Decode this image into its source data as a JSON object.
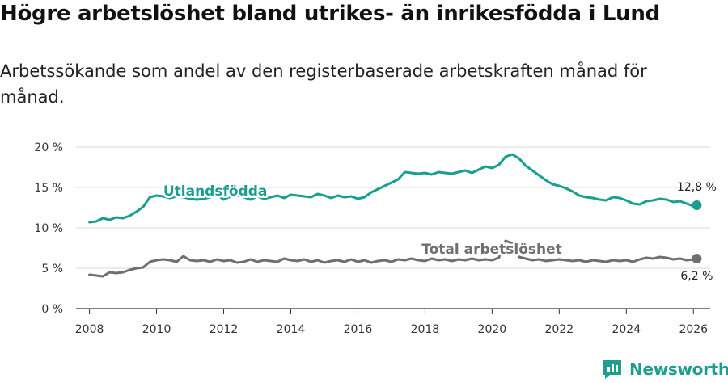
{
  "header": {
    "title": "Högre arbetslöshet bland utrikes- än inrikesfödda i Lund",
    "subtitle": "Arbetssökande som andel av den registerbaserade arbetskraften månad för månad."
  },
  "logo": {
    "text": "Newsworthy"
  },
  "colors": {
    "teal": "#1a9e8f",
    "gray": "#6e6e73",
    "grid": "#d9d9d9"
  },
  "chart_data": {
    "type": "line",
    "title": "Högre arbetslöshet bland utrikes- än inrikesfödda i Lund",
    "subtitle": "Arbetssökande som andel av den registerbaserade arbetskraften månad för månad.",
    "xlabel": "",
    "ylabel": "",
    "xlim": [
      2007.6,
      2026.5
    ],
    "ylim": [
      0,
      20
    ],
    "x_ticks": [
      2008,
      2010,
      2012,
      2014,
      2016,
      2018,
      2020,
      2022,
      2024,
      2026
    ],
    "x_tick_labels": [
      "2008",
      "2010",
      "2012",
      "2014",
      "2016",
      "2018",
      "2020",
      "2022",
      "2024",
      "2026"
    ],
    "y_ticks": [
      0,
      5,
      10,
      15,
      20
    ],
    "y_tick_labels": [
      "0 %",
      "5 %",
      "10 %",
      "15 %",
      "20 %"
    ],
    "grid": true,
    "series": [
      {
        "name": "Utlandsfödda",
        "color": "#1a9e8f",
        "label_at": [
          2010.2,
          14.0
        ],
        "end_label": "12,8 %",
        "x": [
          2008.0,
          2008.2,
          2008.4,
          2008.6,
          2008.8,
          2009.0,
          2009.2,
          2009.4,
          2009.6,
          2009.8,
          2010.0,
          2010.2,
          2010.4,
          2010.6,
          2010.8,
          2011.0,
          2011.2,
          2011.4,
          2011.6,
          2011.8,
          2012.0,
          2012.2,
          2012.4,
          2012.6,
          2012.8,
          2013.0,
          2013.2,
          2013.4,
          2013.6,
          2013.8,
          2014.0,
          2014.2,
          2014.4,
          2014.6,
          2014.8,
          2015.0,
          2015.2,
          2015.4,
          2015.6,
          2015.8,
          2016.0,
          2016.2,
          2016.4,
          2016.6,
          2016.8,
          2017.0,
          2017.2,
          2017.4,
          2017.6,
          2017.8,
          2018.0,
          2018.2,
          2018.4,
          2018.6,
          2018.8,
          2019.0,
          2019.2,
          2019.4,
          2019.6,
          2019.8,
          2020.0,
          2020.2,
          2020.4,
          2020.6,
          2020.8,
          2021.0,
          2021.2,
          2021.4,
          2021.6,
          2021.8,
          2022.0,
          2022.2,
          2022.4,
          2022.6,
          2022.8,
          2023.0,
          2023.2,
          2023.4,
          2023.6,
          2023.8,
          2024.0,
          2024.2,
          2024.4,
          2024.6,
          2024.8,
          2025.0,
          2025.2,
          2025.4,
          2025.6,
          2025.8,
          2026.0,
          2026.1
        ],
        "values": [
          10.7,
          10.8,
          11.2,
          11.0,
          11.3,
          11.2,
          11.5,
          12.0,
          12.6,
          13.8,
          14.0,
          13.9,
          13.7,
          13.9,
          13.8,
          13.6,
          13.5,
          13.6,
          13.8,
          14.1,
          13.5,
          13.9,
          14.0,
          13.8,
          13.5,
          13.9,
          13.6,
          13.8,
          14.0,
          13.7,
          14.1,
          14.0,
          13.9,
          13.8,
          14.2,
          14.0,
          13.7,
          14.0,
          13.8,
          13.9,
          13.6,
          13.8,
          14.4,
          14.8,
          15.2,
          15.6,
          16.0,
          16.9,
          16.8,
          16.7,
          16.8,
          16.6,
          16.9,
          16.8,
          16.7,
          16.9,
          17.1,
          16.8,
          17.2,
          17.6,
          17.4,
          17.8,
          18.8,
          19.1,
          18.6,
          17.7,
          17.1,
          16.5,
          15.9,
          15.4,
          15.2,
          14.9,
          14.5,
          14.0,
          13.8,
          13.7,
          13.5,
          13.4,
          13.8,
          13.7,
          13.4,
          13.0,
          12.9,
          13.3,
          13.4,
          13.6,
          13.5,
          13.2,
          13.3,
          13.0,
          12.7,
          12.8
        ]
      },
      {
        "name": "Total arbetslöshet",
        "color": "#6e6e73",
        "label_at": [
          2017.9,
          6.8
        ],
        "end_label": "6,2 %",
        "x": [
          2008.0,
          2008.2,
          2008.4,
          2008.6,
          2008.8,
          2009.0,
          2009.2,
          2009.4,
          2009.6,
          2009.8,
          2010.0,
          2010.2,
          2010.4,
          2010.6,
          2010.8,
          2011.0,
          2011.2,
          2011.4,
          2011.6,
          2011.8,
          2012.0,
          2012.2,
          2012.4,
          2012.6,
          2012.8,
          2013.0,
          2013.2,
          2013.4,
          2013.6,
          2013.8,
          2014.0,
          2014.2,
          2014.4,
          2014.6,
          2014.8,
          2015.0,
          2015.2,
          2015.4,
          2015.6,
          2015.8,
          2016.0,
          2016.2,
          2016.4,
          2016.6,
          2016.8,
          2017.0,
          2017.2,
          2017.4,
          2017.6,
          2017.8,
          2018.0,
          2018.2,
          2018.4,
          2018.6,
          2018.8,
          2019.0,
          2019.2,
          2019.4,
          2019.6,
          2019.8,
          2020.0,
          2020.2,
          2020.4,
          2020.6,
          2020.8,
          2021.0,
          2021.2,
          2021.4,
          2021.6,
          2021.8,
          2022.0,
          2022.2,
          2022.4,
          2022.6,
          2022.8,
          2023.0,
          2023.2,
          2023.4,
          2023.6,
          2023.8,
          2024.0,
          2024.2,
          2024.4,
          2024.6,
          2024.8,
          2025.0,
          2025.2,
          2025.4,
          2025.6,
          2025.8,
          2026.0,
          2026.1
        ],
        "values": [
          4.2,
          4.1,
          4.0,
          4.5,
          4.4,
          4.5,
          4.8,
          5.0,
          5.1,
          5.8,
          6.0,
          6.1,
          6.0,
          5.8,
          6.5,
          6.0,
          5.9,
          6.0,
          5.8,
          6.1,
          5.9,
          6.0,
          5.7,
          5.8,
          6.1,
          5.8,
          6.0,
          5.9,
          5.8,
          6.2,
          6.0,
          5.9,
          6.1,
          5.8,
          6.0,
          5.7,
          5.9,
          6.0,
          5.8,
          6.1,
          5.8,
          6.0,
          5.7,
          5.9,
          6.0,
          5.8,
          6.1,
          6.0,
          6.2,
          6.0,
          5.9,
          6.2,
          6.0,
          6.1,
          5.9,
          6.1,
          6.0,
          6.2,
          6.0,
          6.1,
          6.0,
          6.3,
          8.4,
          8.1,
          6.4,
          6.2,
          6.0,
          6.1,
          5.9,
          6.0,
          6.1,
          6.0,
          5.9,
          6.0,
          5.8,
          6.0,
          5.9,
          5.8,
          6.0,
          5.9,
          6.0,
          5.8,
          6.1,
          6.3,
          6.2,
          6.4,
          6.3,
          6.1,
          6.2,
          6.0,
          6.1,
          6.2
        ]
      }
    ]
  }
}
